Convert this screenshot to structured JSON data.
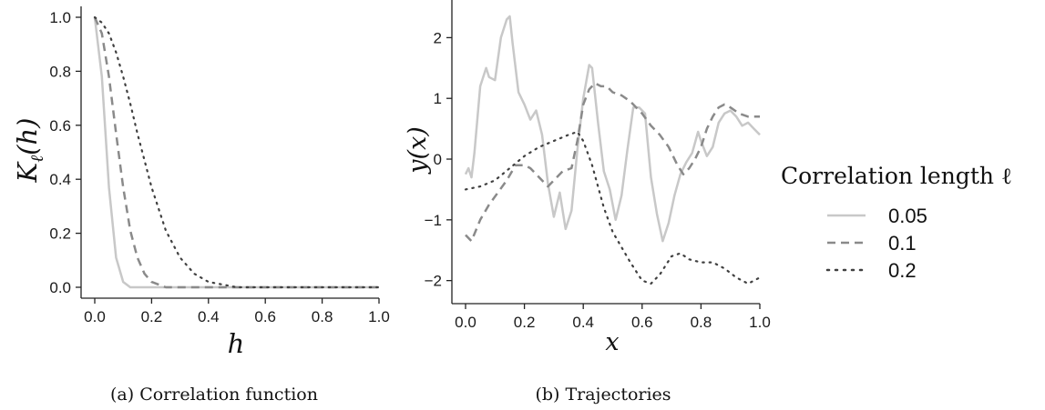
{
  "chart_data": [
    {
      "type": "line",
      "xlabel": "h",
      "ylabel": "K_ℓ(h)",
      "xlim": [
        0,
        1
      ],
      "ylim": [
        0,
        1
      ],
      "xticks": [
        "0.0",
        "0.2",
        "0.4",
        "0.6",
        "0.8",
        "1.0"
      ],
      "yticks": [
        "0.0",
        "0.2",
        "0.4",
        "0.6",
        "0.8",
        "1.0"
      ],
      "x": [
        0,
        0.025,
        0.05,
        0.075,
        0.1,
        0.125,
        0.15,
        0.175,
        0.2,
        0.25,
        0.3,
        0.35,
        0.4,
        0.45,
        0.5,
        0.55,
        0.6,
        0.65,
        0.7,
        0.75,
        0.8,
        0.85,
        0.9,
        0.95,
        1.0
      ],
      "series": [
        {
          "name": "0.05",
          "values": [
            1.0,
            0.78,
            0.37,
            0.11,
            0.02,
            0.0,
            0,
            0,
            0,
            0,
            0,
            0,
            0,
            0,
            0,
            0,
            0,
            0,
            0,
            0,
            0,
            0,
            0,
            0,
            0
          ]
        },
        {
          "name": "0.1",
          "values": [
            1.0,
            0.94,
            0.78,
            0.57,
            0.37,
            0.21,
            0.11,
            0.05,
            0.02,
            0.0,
            0,
            0,
            0,
            0,
            0,
            0,
            0,
            0,
            0,
            0,
            0,
            0,
            0,
            0,
            0
          ]
        },
        {
          "name": "0.2",
          "values": [
            1.0,
            0.98,
            0.94,
            0.87,
            0.78,
            0.68,
            0.57,
            0.47,
            0.37,
            0.21,
            0.11,
            0.05,
            0.02,
            0.01,
            0.0,
            0,
            0,
            0,
            0,
            0,
            0,
            0,
            0,
            0,
            0
          ]
        }
      ],
      "grid": false,
      "caption": "(a) Correlation function"
    },
    {
      "type": "line",
      "xlabel": "x",
      "ylabel": "y(x)",
      "xlim": [
        0,
        1
      ],
      "ylim": [
        -2.2,
        2.5
      ],
      "xticks": [
        "0.0",
        "0.2",
        "0.4",
        "0.6",
        "0.8",
        "1.0"
      ],
      "yticks": [
        "−2",
        "−1",
        "0",
        "1",
        "2"
      ],
      "series": [
        {
          "name": "0.05",
          "x": [
            0,
            0.01,
            0.02,
            0.03,
            0.05,
            0.07,
            0.08,
            0.1,
            0.12,
            0.14,
            0.15,
            0.16,
            0.18,
            0.2,
            0.22,
            0.24,
            0.26,
            0.28,
            0.3,
            0.32,
            0.34,
            0.36,
            0.38,
            0.4,
            0.42,
            0.43,
            0.45,
            0.47,
            0.49,
            0.51,
            0.53,
            0.55,
            0.57,
            0.59,
            0.61,
            0.63,
            0.65,
            0.67,
            0.69,
            0.71,
            0.73,
            0.75,
            0.77,
            0.79,
            0.8,
            0.82,
            0.84,
            0.86,
            0.88,
            0.9,
            0.92,
            0.94,
            0.96,
            0.98,
            1.0
          ],
          "values": [
            -0.25,
            -0.15,
            -0.3,
            0.1,
            1.2,
            1.5,
            1.35,
            1.3,
            2.0,
            2.3,
            2.35,
            1.9,
            1.1,
            0.9,
            0.65,
            0.8,
            0.4,
            -0.4,
            -0.95,
            -0.55,
            -1.15,
            -0.85,
            0.15,
            1.0,
            1.55,
            1.5,
            0.6,
            -0.2,
            -0.5,
            -1.0,
            -0.6,
            0.15,
            0.85,
            0.85,
            0.75,
            -0.3,
            -0.9,
            -1.35,
            -1.05,
            -0.6,
            -0.25,
            -0.05,
            0.1,
            0.45,
            0.3,
            0.05,
            0.2,
            0.6,
            0.75,
            0.8,
            0.7,
            0.55,
            0.6,
            0.5,
            0.4
          ]
        },
        {
          "name": "0.1",
          "x": [
            0,
            0.02,
            0.05,
            0.08,
            0.11,
            0.14,
            0.17,
            0.2,
            0.22,
            0.25,
            0.28,
            0.3,
            0.33,
            0.36,
            0.38,
            0.4,
            0.42,
            0.44,
            0.46,
            0.48,
            0.5,
            0.53,
            0.56,
            0.6,
            0.63,
            0.66,
            0.69,
            0.72,
            0.74,
            0.76,
            0.78,
            0.8,
            0.82,
            0.84,
            0.86,
            0.88,
            0.9,
            0.93,
            0.96,
            1.0
          ],
          "values": [
            -1.25,
            -1.35,
            -1.0,
            -0.75,
            -0.55,
            -0.35,
            -0.1,
            -0.1,
            -0.15,
            -0.3,
            -0.45,
            -0.35,
            -0.2,
            -0.15,
            0.3,
            0.9,
            1.15,
            1.25,
            1.2,
            1.2,
            1.1,
            1.05,
            0.95,
            0.75,
            0.55,
            0.4,
            0.2,
            -0.1,
            -0.25,
            -0.15,
            0.0,
            0.2,
            0.5,
            0.7,
            0.85,
            0.9,
            0.85,
            0.75,
            0.7,
            0.7
          ]
        },
        {
          "name": "0.2",
          "x": [
            0,
            0.05,
            0.1,
            0.15,
            0.2,
            0.25,
            0.3,
            0.35,
            0.38,
            0.4,
            0.43,
            0.47,
            0.5,
            0.53,
            0.56,
            0.58,
            0.6,
            0.63,
            0.66,
            0.7,
            0.73,
            0.76,
            0.8,
            0.84,
            0.88,
            0.92,
            0.96,
            1.0
          ],
          "values": [
            -0.5,
            -0.45,
            -0.35,
            -0.15,
            0.05,
            0.2,
            0.3,
            0.4,
            0.45,
            0.3,
            -0.1,
            -0.8,
            -1.2,
            -1.45,
            -1.7,
            -1.85,
            -2.0,
            -2.05,
            -1.9,
            -1.6,
            -1.55,
            -1.65,
            -1.7,
            -1.7,
            -1.8,
            -1.95,
            -2.05,
            -1.95
          ]
        }
      ],
      "grid": false,
      "caption": "(b) Trajectories"
    }
  ],
  "legend": {
    "title": "Correlation length ℓ",
    "placement": "right",
    "entries": [
      {
        "label": "0.05",
        "color": "#c8c8c8",
        "style": "solid"
      },
      {
        "label": "0.1",
        "color": "#8a8a8a",
        "style": "dashed"
      },
      {
        "label": "0.2",
        "color": "#404040",
        "style": "dotted"
      }
    ]
  }
}
